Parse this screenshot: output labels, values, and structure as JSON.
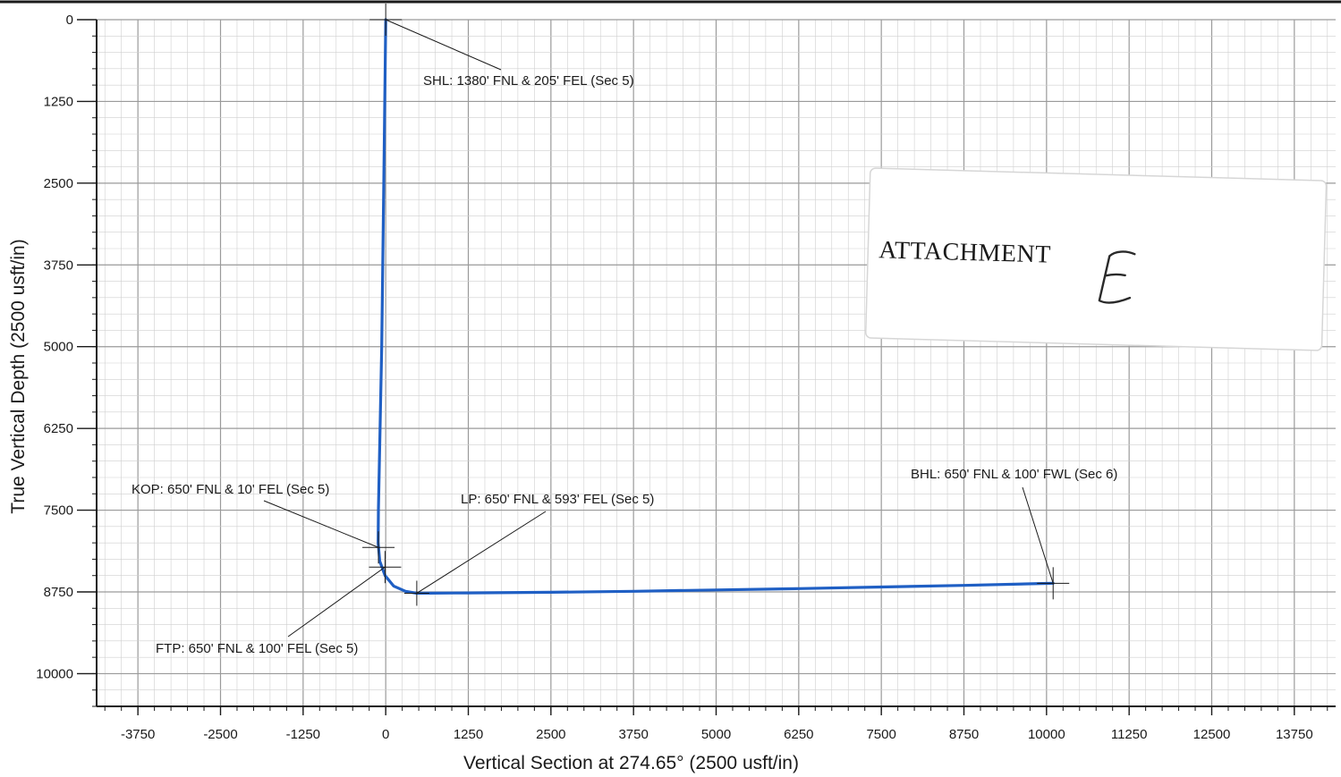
{
  "chart_data": {
    "type": "line",
    "xlabel": "Vertical Section at 274.65° (2500 usft/in)",
    "ylabel": "True Vertical Depth (2500 usft/in)",
    "xlim": [
      -4375,
      14375
    ],
    "ylim": [
      0,
      10500
    ],
    "y_inverted": true,
    "x_ticks": [
      -3750,
      -2500,
      -1250,
      0,
      1250,
      2500,
      3750,
      5000,
      6250,
      7500,
      8750,
      10000,
      11250,
      12500,
      13750
    ],
    "y_ticks": [
      0,
      1250,
      2500,
      3750,
      5000,
      6250,
      7500,
      8750,
      10000
    ],
    "grid": true,
    "series": [
      {
        "color": "#1f5fc4",
        "points": [
          [
            0,
            0
          ],
          [
            -30,
            2500
          ],
          [
            -60,
            5000
          ],
          [
            -110,
            7500
          ],
          [
            -115,
            8000
          ],
          [
            -90,
            8280
          ],
          [
            -10,
            8500
          ],
          [
            120,
            8660
          ],
          [
            300,
            8740
          ],
          [
            470,
            8770
          ],
          [
            1250,
            8765
          ],
          [
            2500,
            8755
          ],
          [
            3750,
            8740
          ],
          [
            5000,
            8720
          ],
          [
            6250,
            8700
          ],
          [
            7500,
            8675
          ],
          [
            8750,
            8650
          ],
          [
            10000,
            8620
          ],
          [
            10100,
            8618
          ]
        ]
      }
    ],
    "annotations": [
      {
        "name": "shl",
        "text": "SHL: 1380' FNL & 205' FEL (Sec 5)",
        "point": [
          0,
          0
        ]
      },
      {
        "name": "kop",
        "text": "KOP: 650' FNL & 10' FEL (Sec 5)",
        "point": [
          -110,
          8070
        ]
      },
      {
        "name": "ftp",
        "text": "FTP: 650' FNL & 100' FEL (Sec 5)",
        "point": [
          -10,
          8370
        ]
      },
      {
        "name": "lp",
        "text": "LP: 650' FNL & 593' FEL (Sec 5)",
        "point": [
          470,
          8770
        ]
      },
      {
        "name": "bhl",
        "text": "BHL: 650' FNL & 100' FWL (Sec 6)",
        "point": [
          10100,
          8618
        ]
      }
    ]
  },
  "stamp": {
    "text": "ATTACHMENT",
    "handwritten": "E"
  },
  "colors": {
    "grid_major": "#9a9a9a",
    "grid_minor": "#cfcfcf",
    "well_path": "#1f5fc4",
    "axis": "#1a1a1a"
  }
}
